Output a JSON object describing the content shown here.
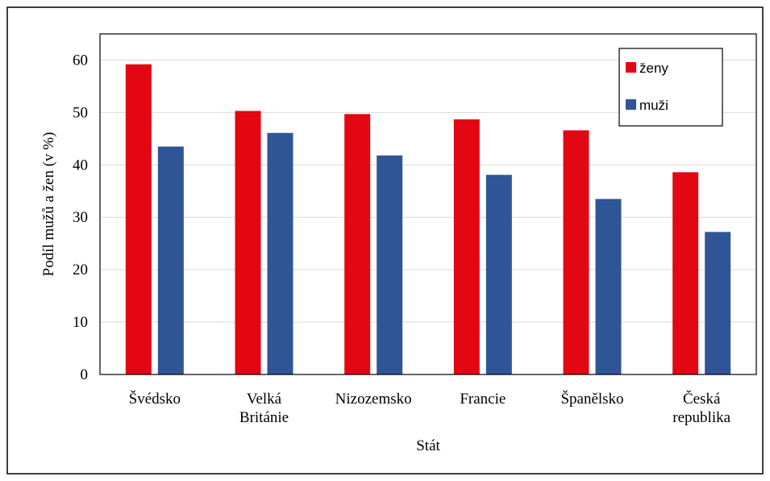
{
  "chart_data": {
    "type": "bar",
    "title": "",
    "xlabel": "Stát",
    "ylabel": "Podíl mužů a žen (v %)",
    "categories": [
      [
        "Švédsko"
      ],
      [
        "Velká",
        "Británie"
      ],
      [
        "Nizozemsko"
      ],
      [
        "Francie"
      ],
      [
        "Španělsko"
      ],
      [
        "Česká",
        "republika"
      ]
    ],
    "series": [
      {
        "name": "ženy",
        "color": "#e30613",
        "values": [
          59.2,
          50.3,
          49.7,
          48.7,
          46.6,
          38.6
        ]
      },
      {
        "name": "muži",
        "color": "#2f5597",
        "values": [
          43.5,
          46.1,
          41.8,
          38.1,
          33.5,
          27.2
        ]
      }
    ],
    "ylim": [
      0,
      65
    ],
    "yticks": [
      "0",
      "10",
      "20",
      "30",
      "40",
      "50",
      "60"
    ],
    "grid": true,
    "legend_position": "top-right"
  }
}
